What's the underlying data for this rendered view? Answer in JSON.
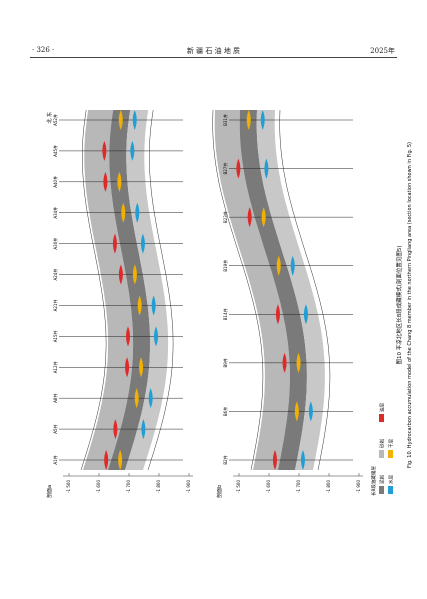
{
  "header": {
    "page": "· 326 ·",
    "journal": "新 疆 石 油 地 质",
    "year": "2025年"
  },
  "figure": {
    "panels": [
      {
        "label": "剖面a",
        "direction": "北 东",
        "wells": [
          "A1井",
          "A5井",
          "A8井",
          "A12井",
          "A15井",
          "A21井",
          "A24井",
          "A30井",
          "A34井",
          "A40井",
          "A45井",
          "A52井"
        ],
        "depths": [
          "-1 500",
          "-1 600",
          "-1 700",
          "-1 800",
          "-1 900"
        ]
      },
      {
        "label": "剖面b",
        "direction": "北 东",
        "wells": [
          "B2井",
          "B6井",
          "B9井",
          "B14井",
          "B19井",
          "B23井",
          "B27井",
          "B31井"
        ],
        "depths": [
          "-1 500",
          "-1 600",
          "-1 700",
          "-1 800",
          "-1 900"
        ]
      }
    ],
    "legend": [
      "泥岩",
      "砂岩",
      "油层",
      "水层",
      "干层"
    ],
    "legend_title": "长8段油藏储层",
    "caption_cn": "图10  平凉北地区长8段成藏模式(剖面位置见图5)",
    "caption_en": "Fig. 10.  Hydrocarbon accumulation model of the Chang 8 member in the northern Pingliang area (section location shown in Fig. 5)"
  }
}
